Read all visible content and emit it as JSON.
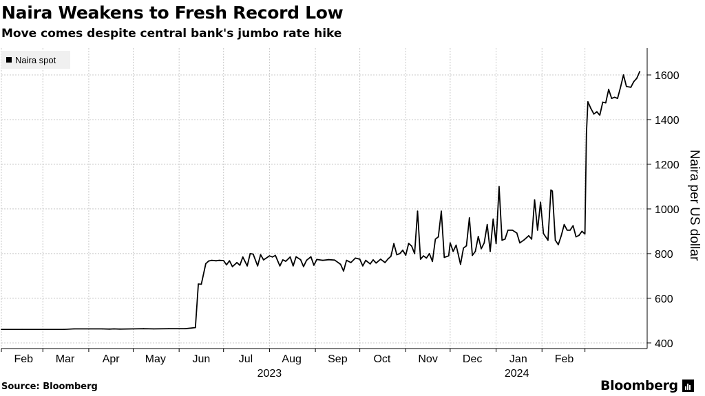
{
  "title": "Naira Weakens to Fresh Record Low",
  "subtitle": "Move comes despite central bank's jumbo rate hike",
  "source": "Source: Bloomberg",
  "brand": "Bloomberg",
  "colors": {
    "line": "#000000",
    "grid": "#c8c8c8",
    "legend_bg": "#f0f0f0"
  },
  "chart_data": {
    "type": "line",
    "title": "Naira Weakens to Fresh Record Low",
    "subtitle": "Move comes despite central bank's jumbo rate hike",
    "ylabel": "Naira per US dollar",
    "ylim": [
      375,
      1720
    ],
    "y_ticks": [
      400,
      600,
      800,
      1000,
      1200,
      1400,
      1600
    ],
    "y_axis_side": "right",
    "grid": true,
    "legend": {
      "placement": "top-left",
      "entries": [
        "Naira spot"
      ]
    },
    "x_axis": {
      "month_ticks": [
        "2023-02-01",
        "2023-03-01",
        "2023-04-01",
        "2023-05-01",
        "2023-06-01",
        "2023-07-01",
        "2023-08-01",
        "2023-09-01",
        "2023-10-01",
        "2023-11-01",
        "2023-12-01",
        "2024-01-01",
        "2024-02-01",
        "2024-03-01"
      ],
      "month_labels": [
        {
          "label": "Feb",
          "date": "2023-02-01"
        },
        {
          "label": "Mar",
          "date": "2023-03-01"
        },
        {
          "label": "Apr",
          "date": "2023-04-01"
        },
        {
          "label": "May",
          "date": "2023-05-01"
        },
        {
          "label": "Jun",
          "date": "2023-06-01"
        },
        {
          "label": "Jul",
          "date": "2023-07-01"
        },
        {
          "label": "Aug",
          "date": "2023-08-01"
        },
        {
          "label": "Sep",
          "date": "2023-09-01"
        },
        {
          "label": "Oct",
          "date": "2023-10-01"
        },
        {
          "label": "Nov",
          "date": "2023-11-01"
        },
        {
          "label": "Dec",
          "date": "2023-12-01"
        },
        {
          "label": "Jan",
          "date": "2024-01-01"
        },
        {
          "label": "Feb",
          "date": "2024-02-01"
        }
      ],
      "year_labels": [
        {
          "label": "2023",
          "date": "2023-08-01"
        },
        {
          "label": "2024",
          "date": "2024-01-15"
        }
      ]
    },
    "series": [
      {
        "name": "Naira spot",
        "points": [
          [
            "2023-02-01",
            461
          ],
          [
            "2023-02-15",
            461
          ],
          [
            "2023-03-01",
            461
          ],
          [
            "2023-03-15",
            461
          ],
          [
            "2023-03-22",
            463
          ],
          [
            "2023-04-01",
            463
          ],
          [
            "2023-04-10",
            463
          ],
          [
            "2023-04-15",
            462
          ],
          [
            "2023-04-18",
            463
          ],
          [
            "2023-04-22",
            462
          ],
          [
            "2023-05-01",
            463
          ],
          [
            "2023-05-08",
            464
          ],
          [
            "2023-05-15",
            463
          ],
          [
            "2023-05-25",
            464
          ],
          [
            "2023-06-05",
            464
          ],
          [
            "2023-06-12",
            469
          ],
          [
            "2023-06-14",
            664
          ],
          [
            "2023-06-16",
            663
          ],
          [
            "2023-06-19",
            755
          ],
          [
            "2023-06-21",
            767
          ],
          [
            "2023-06-23",
            770
          ],
          [
            "2023-06-26",
            768
          ],
          [
            "2023-06-28",
            770
          ],
          [
            "2023-07-01",
            769
          ],
          [
            "2023-07-03",
            750
          ],
          [
            "2023-07-05",
            768
          ],
          [
            "2023-07-07",
            742
          ],
          [
            "2023-07-10",
            760
          ],
          [
            "2023-07-12",
            748
          ],
          [
            "2023-07-14",
            785
          ],
          [
            "2023-07-17",
            745
          ],
          [
            "2023-07-19",
            800
          ],
          [
            "2023-07-21",
            798
          ],
          [
            "2023-07-24",
            745
          ],
          [
            "2023-07-26",
            795
          ],
          [
            "2023-07-28",
            772
          ],
          [
            "2023-08-01",
            790
          ],
          [
            "2023-08-03",
            785
          ],
          [
            "2023-08-05",
            792
          ],
          [
            "2023-08-08",
            745
          ],
          [
            "2023-08-10",
            772
          ],
          [
            "2023-08-12",
            766
          ],
          [
            "2023-08-15",
            785
          ],
          [
            "2023-08-17",
            745
          ],
          [
            "2023-08-19",
            786
          ],
          [
            "2023-08-22",
            773
          ],
          [
            "2023-08-24",
            742
          ],
          [
            "2023-08-26",
            770
          ],
          [
            "2023-08-29",
            786
          ],
          [
            "2023-08-31",
            748
          ],
          [
            "2023-09-02",
            774
          ],
          [
            "2023-09-06",
            770
          ],
          [
            "2023-09-10",
            773
          ],
          [
            "2023-09-14",
            771
          ],
          [
            "2023-09-18",
            752
          ],
          [
            "2023-09-20",
            722
          ],
          [
            "2023-09-22",
            770
          ],
          [
            "2023-09-25",
            760
          ],
          [
            "2023-09-28",
            780
          ],
          [
            "2023-10-01",
            775
          ],
          [
            "2023-10-03",
            745
          ],
          [
            "2023-10-05",
            770
          ],
          [
            "2023-10-08",
            754
          ],
          [
            "2023-10-10",
            772
          ],
          [
            "2023-10-12",
            758
          ],
          [
            "2023-10-15",
            775
          ],
          [
            "2023-10-18",
            760
          ],
          [
            "2023-10-20",
            776
          ],
          [
            "2023-10-22",
            788
          ],
          [
            "2023-10-24",
            845
          ],
          [
            "2023-10-26",
            795
          ],
          [
            "2023-10-28",
            800
          ],
          [
            "2023-10-30",
            815
          ],
          [
            "2023-11-01",
            793
          ],
          [
            "2023-11-03",
            846
          ],
          [
            "2023-11-05",
            834
          ],
          [
            "2023-11-07",
            800
          ],
          [
            "2023-11-09",
            990
          ],
          [
            "2023-11-11",
            775
          ],
          [
            "2023-11-13",
            790
          ],
          [
            "2023-11-15",
            780
          ],
          [
            "2023-11-17",
            800
          ],
          [
            "2023-11-19",
            765
          ],
          [
            "2023-11-21",
            865
          ],
          [
            "2023-11-23",
            875
          ],
          [
            "2023-11-25",
            990
          ],
          [
            "2023-11-27",
            783
          ],
          [
            "2023-11-30",
            790
          ],
          [
            "2023-12-01",
            848
          ],
          [
            "2023-12-03",
            810
          ],
          [
            "2023-12-05",
            838
          ],
          [
            "2023-12-08",
            752
          ],
          [
            "2023-12-10",
            825
          ],
          [
            "2023-12-12",
            835
          ],
          [
            "2023-12-14",
            960
          ],
          [
            "2023-12-16",
            792
          ],
          [
            "2023-12-18",
            810
          ],
          [
            "2023-12-20",
            877
          ],
          [
            "2023-12-22",
            822
          ],
          [
            "2023-12-24",
            848
          ],
          [
            "2023-12-26",
            930
          ],
          [
            "2023-12-28",
            810
          ],
          [
            "2023-12-30",
            955
          ],
          [
            "2024-01-01",
            845
          ],
          [
            "2024-01-03",
            1100
          ],
          [
            "2024-01-05",
            860
          ],
          [
            "2024-01-07",
            865
          ],
          [
            "2024-01-09",
            905
          ],
          [
            "2024-01-12",
            905
          ],
          [
            "2024-01-15",
            892
          ],
          [
            "2024-01-17",
            848
          ],
          [
            "2024-01-20",
            862
          ],
          [
            "2024-01-23",
            880
          ],
          [
            "2024-01-25",
            865
          ],
          [
            "2024-01-27",
            1040
          ],
          [
            "2024-01-29",
            905
          ],
          [
            "2024-01-31",
            1030
          ],
          [
            "2024-02-02",
            890
          ],
          [
            "2024-02-05",
            860
          ],
          [
            "2024-02-07",
            1085
          ],
          [
            "2024-02-08",
            1080
          ],
          [
            "2024-02-10",
            860
          ],
          [
            "2024-02-12",
            840
          ],
          [
            "2024-02-14",
            880
          ],
          [
            "2024-02-16",
            930
          ],
          [
            "2024-02-18",
            905
          ],
          [
            "2024-02-20",
            905
          ],
          [
            "2024-02-22",
            925
          ],
          [
            "2024-02-24",
            875
          ],
          [
            "2024-02-26",
            882
          ],
          [
            "2024-02-28",
            900
          ],
          [
            "2024-03-01",
            888
          ],
          [
            "2024-03-02",
            1340
          ],
          [
            "2024-03-03",
            1480
          ],
          [
            "2024-03-05",
            1450
          ],
          [
            "2024-03-07",
            1425
          ],
          [
            "2024-03-09",
            1435
          ],
          [
            "2024-03-11",
            1420
          ],
          [
            "2024-03-13",
            1478
          ],
          [
            "2024-03-15",
            1475
          ],
          [
            "2024-03-17",
            1535
          ],
          [
            "2024-03-19",
            1495
          ],
          [
            "2024-03-21",
            1500
          ],
          [
            "2024-03-23",
            1495
          ],
          [
            "2024-03-25",
            1545
          ],
          [
            "2024-03-27",
            1600
          ],
          [
            "2024-03-29",
            1548
          ],
          [
            "2024-04-01",
            1545
          ],
          [
            "2024-04-03",
            1570
          ],
          [
            "2024-04-05",
            1585
          ],
          [
            "2024-04-07",
            1615
          ]
        ]
      }
    ]
  }
}
